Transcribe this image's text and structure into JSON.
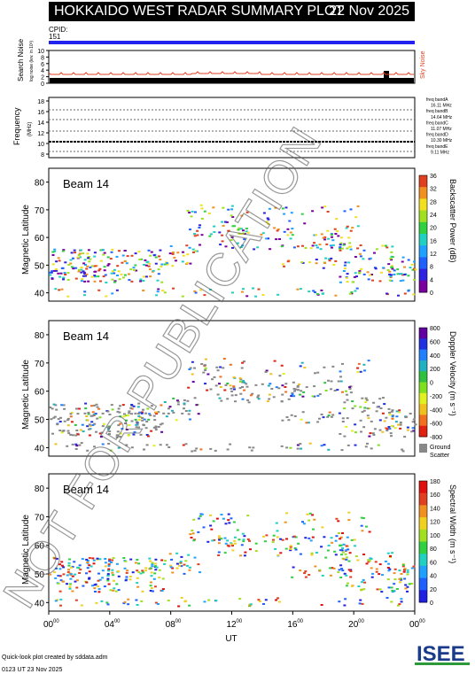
{
  "header": {
    "title": "HOKKAIDO WEST RADAR SUMMARY PLOT",
    "date": "22 Nov 2025"
  },
  "cpid": {
    "label": "CPID:",
    "value": "151"
  },
  "noise_panel": {
    "ylabel": "Search Noise",
    "ylabel_sub": "log noise (lev. in 10³)",
    "right_label": "Sky Noise",
    "yticks": [
      "10",
      "8",
      "6",
      "4",
      "2",
      "0"
    ]
  },
  "freq_panel": {
    "ylabel": "Frequency",
    "unit": "(MHz)",
    "yticks": [
      "18",
      "16",
      "14",
      "12",
      "10",
      "8"
    ],
    "bands": [
      "freq bandA",
      "16.11 MHz",
      "freq bandB",
      "14.64 MHz",
      "freq bandC",
      "11.07 MHz",
      "freq bandD",
      "10.30 MHz",
      "freq bandE",
      "9.11 MHz"
    ]
  },
  "colors": {
    "power": [
      "#7a00a0",
      "#3020e0",
      "#2060ff",
      "#20a0ff",
      "#20d0c0",
      "#30d040",
      "#a0e020",
      "#f0e020",
      "#f09020",
      "#e04020"
    ],
    "velocity": [
      "#e02010",
      "#f07020",
      "#f0c020",
      "#e0f020",
      "#80e020",
      "#30c040",
      "#20b0c0",
      "#2080ff",
      "#2030e0",
      "#6000a0"
    ],
    "width": [
      "#2020e0",
      "#2060ff",
      "#20a0ff",
      "#20d0c0",
      "#30d040",
      "#a0e020",
      "#f0d020",
      "#f09020",
      "#e04020",
      "#e01010"
    ],
    "ground": "#888888"
  },
  "chart_data": [
    {
      "type": "heatmap",
      "title": "Beam 14",
      "ylabel": "Magnetic Latitude",
      "colorbar_label": "Backscatter Power (dB)",
      "colorbar_ticks": [
        "36",
        "32",
        "28",
        "24",
        "20",
        "16",
        "12",
        "8",
        "4",
        "0"
      ],
      "ylim": [
        37,
        85
      ],
      "yticks": [
        "80",
        "70",
        "60",
        "50",
        "40"
      ],
      "xlim_hours": [
        0,
        24
      ]
    },
    {
      "type": "heatmap",
      "title": "Beam 14",
      "ylabel": "Magnetic Latitude",
      "colorbar_label": "Doppler Velocity (m s⁻¹)",
      "colorbar_ticks": [
        "800",
        "600",
        "400",
        "200",
        "0",
        "-200",
        "-400",
        "-600",
        "-800"
      ],
      "ground_label": [
        "Ground",
        "Scatter"
      ],
      "ylim": [
        37,
        85
      ],
      "yticks": [
        "80",
        "70",
        "60",
        "50",
        "40"
      ]
    },
    {
      "type": "heatmap",
      "title": "Beam 14",
      "ylabel": "Magnetic Latitude",
      "colorbar_label": "Spectral Width (m s⁻¹)",
      "colorbar_ticks": [
        "180",
        "160",
        "140",
        "120",
        "100",
        "80",
        "60",
        "40",
        "20",
        "0"
      ],
      "ylim": [
        37,
        85
      ],
      "yticks": [
        "80",
        "70",
        "60",
        "50",
        "40"
      ]
    }
  ],
  "x_axis": {
    "ticks": [
      {
        "h": "00",
        "m": "00"
      },
      {
        "h": "04",
        "m": "00"
      },
      {
        "h": "08",
        "m": "00"
      },
      {
        "h": "12",
        "m": "00"
      },
      {
        "h": "16",
        "m": "00"
      },
      {
        "h": "20",
        "m": "00"
      },
      {
        "h": "00",
        "m": "00"
      }
    ],
    "label": "UT"
  },
  "footer": {
    "line1": "Quick-look plot created by sddata.adm",
    "line2": "0123 UT 23 Nov 2025"
  },
  "watermark": "NOT FOR PUBLICATION",
  "logo": "ISEE"
}
